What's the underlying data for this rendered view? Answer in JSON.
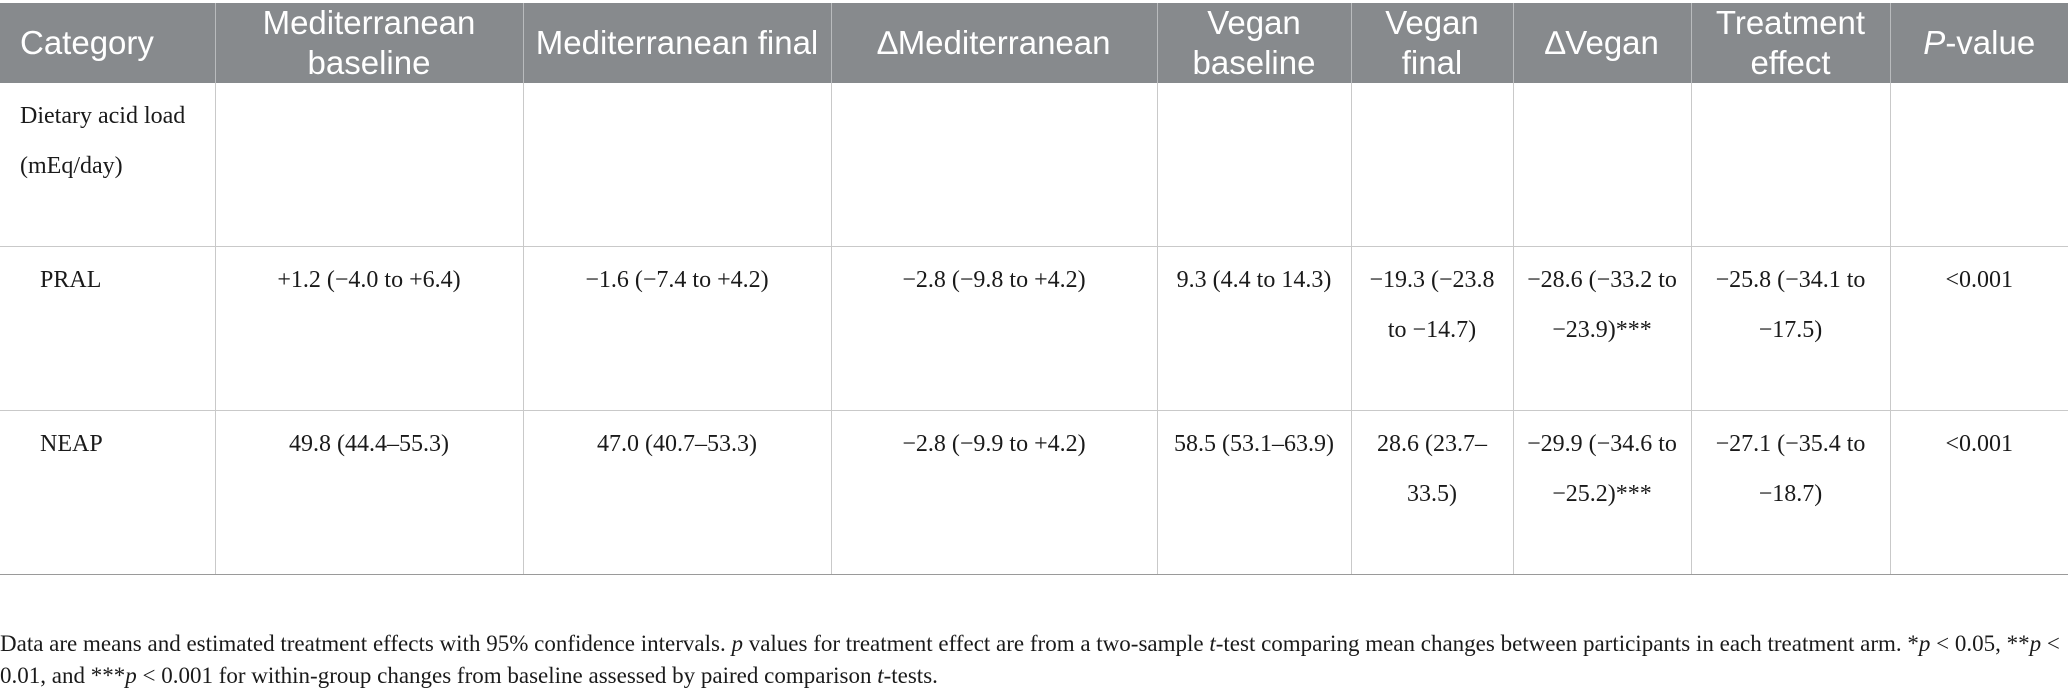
{
  "table": {
    "headers": {
      "category": "Category",
      "med_baseline": "Mediterranean baseline",
      "med_final": "Mediterranean final",
      "delta_med": "∆Mediterranean",
      "vegan_baseline": "Vegan baseline",
      "vegan_final": "Vegan final",
      "delta_vegan": "∆Vegan",
      "treatment_effect": "Treatment effect",
      "p_value_italic": "P",
      "p_value_rest": "-value"
    },
    "section": {
      "label": "Dietary acid load (mEq/day)"
    },
    "rows": [
      {
        "category": "PRAL",
        "med_baseline": "+1.2 (−4.0 to +6.4)",
        "med_final": "−1.6 (−7.4 to +4.2)",
        "delta_med": "−2.8 (−9.8 to +4.2)",
        "vegan_baseline": "9.3 (4.4 to 14.3)",
        "vegan_final": "−19.3 (−23.8 to −14.7)",
        "delta_vegan": "−28.6 (−33.2 to −23.9)***",
        "treatment_effect": "−25.8 (−34.1 to −17.5)",
        "p_value": "<0.001"
      },
      {
        "category": "NEAP",
        "med_baseline": "49.8 (44.4–55.3)",
        "med_final": "47.0 (40.7–53.3)",
        "delta_med": "−2.8 (−9.9 to +4.2)",
        "vegan_baseline": "58.5 (53.1–63.9)",
        "vegan_final": "28.6 (23.7–33.5)",
        "delta_vegan": "−29.9 (−34.6 to −25.2)***",
        "treatment_effect": "−27.1 (−35.4 to −18.7)",
        "p_value": "<0.001"
      }
    ]
  },
  "footnote": {
    "t1": "Data are means and estimated treatment effects with 95% confidence intervals. ",
    "t2": "p",
    "t3": " values for treatment effect are from a two-sample ",
    "t4": "t",
    "t5": "-test comparing mean changes between participants in each treatment arm. *",
    "t6": "p",
    "t7": " < 0.05, **",
    "t8": "p",
    "t9": " < 0.01, and ***",
    "t10": "p",
    "t11": " < 0.001 for within-group changes from baseline assessed by paired comparison ",
    "t12": "t",
    "t13": "-tests."
  }
}
